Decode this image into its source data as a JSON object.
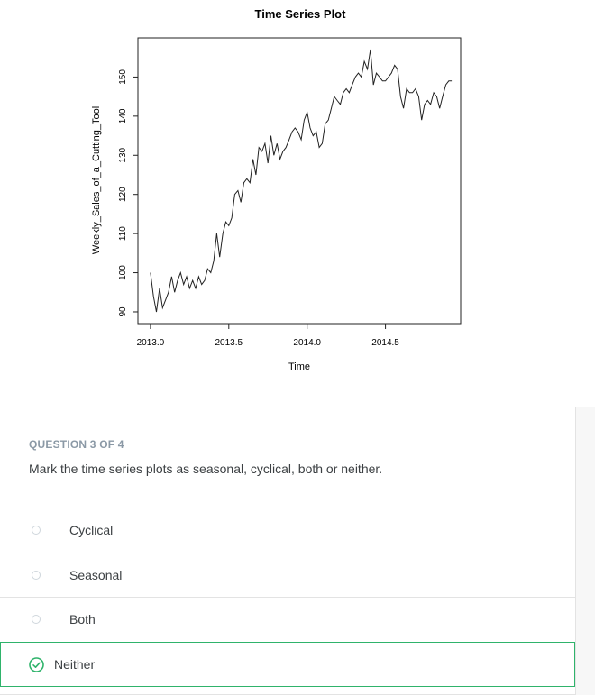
{
  "chart_data": {
    "type": "line",
    "title": "Time Series Plot",
    "xlabel": "Time",
    "ylabel": "Weekly_Sales_of_a_Cutting_Tool",
    "xlim": [
      2012.92,
      2014.98
    ],
    "ylim": [
      87,
      160
    ],
    "xticks": [
      2013.0,
      2013.5,
      2014.0,
      2014.5
    ],
    "xtick_labels": [
      "2013.0",
      "2013.5",
      "2014.0",
      "2014.5"
    ],
    "yticks": [
      90,
      100,
      110,
      120,
      130,
      140,
      150
    ],
    "ytick_labels": [
      "90",
      "100",
      "110",
      "120",
      "130",
      "140",
      "150"
    ],
    "grid": false,
    "legend": "none",
    "line_color": "#222222",
    "series": [
      {
        "x": [
          2013.0,
          2013.019,
          2013.038,
          2013.058,
          2013.077,
          2013.096,
          2013.115,
          2013.135,
          2013.154,
          2013.173,
          2013.192,
          2013.212,
          2013.231,
          2013.25,
          2013.269,
          2013.288,
          2013.308,
          2013.327,
          2013.346,
          2013.365,
          2013.385,
          2013.404,
          2013.423,
          2013.442,
          2013.462,
          2013.481,
          2013.5,
          2013.519,
          2013.538,
          2013.558,
          2013.577,
          2013.596,
          2013.615,
          2013.635,
          2013.654,
          2013.673,
          2013.692,
          2013.712,
          2013.731,
          2013.75,
          2013.769,
          2013.788,
          2013.808,
          2013.827,
          2013.846,
          2013.865,
          2013.885,
          2013.904,
          2013.923,
          2013.942,
          2013.962,
          2013.981,
          2014.0,
          2014.019,
          2014.038,
          2014.058,
          2014.077,
          2014.096,
          2014.115,
          2014.135,
          2014.154,
          2014.173,
          2014.192,
          2014.212,
          2014.231,
          2014.25,
          2014.269,
          2014.288,
          2014.308,
          2014.327,
          2014.346,
          2014.365,
          2014.385,
          2014.404,
          2014.423,
          2014.442,
          2014.462,
          2014.481,
          2014.5,
          2014.519,
          2014.538,
          2014.558,
          2014.577,
          2014.596,
          2014.615,
          2014.635,
          2014.654,
          2014.673,
          2014.692,
          2014.712,
          2014.731,
          2014.75,
          2014.769,
          2014.788,
          2014.808,
          2014.827,
          2014.846,
          2014.865,
          2014.885,
          2014.904,
          2014.923
        ],
        "values": [
          100,
          94,
          90,
          96,
          91,
          93,
          95,
          99,
          95,
          98,
          100,
          97,
          99,
          96,
          98,
          96,
          99,
          97,
          98,
          101,
          100,
          103,
          110,
          104,
          110,
          113,
          112,
          114,
          120,
          121,
          118,
          123,
          124,
          123,
          129,
          125,
          132,
          131,
          133,
          128,
          135,
          130,
          133,
          129,
          131,
          132,
          134,
          136,
          137,
          136,
          134,
          139,
          141,
          137,
          135,
          136,
          132,
          133,
          138,
          139,
          142,
          145,
          144,
          143,
          146,
          147,
          146,
          148,
          150,
          151,
          150,
          154,
          152,
          157,
          148,
          151,
          150,
          149,
          149,
          150,
          151,
          153,
          152,
          145,
          142,
          147,
          146,
          146,
          147,
          145,
          139,
          143,
          144,
          143,
          146,
          145,
          142,
          145,
          148,
          149,
          149
        ]
      }
    ]
  },
  "quiz": {
    "progress": "QUESTION 3 OF 4",
    "question": "Mark the time series plots as seasonal, cyclical, both or neither.",
    "options": [
      {
        "label": "Cyclical",
        "selected": false
      },
      {
        "label": "Seasonal",
        "selected": false
      },
      {
        "label": "Both",
        "selected": false
      },
      {
        "label": "Neither",
        "selected": true
      }
    ],
    "accent_color": "#2fb36b"
  }
}
